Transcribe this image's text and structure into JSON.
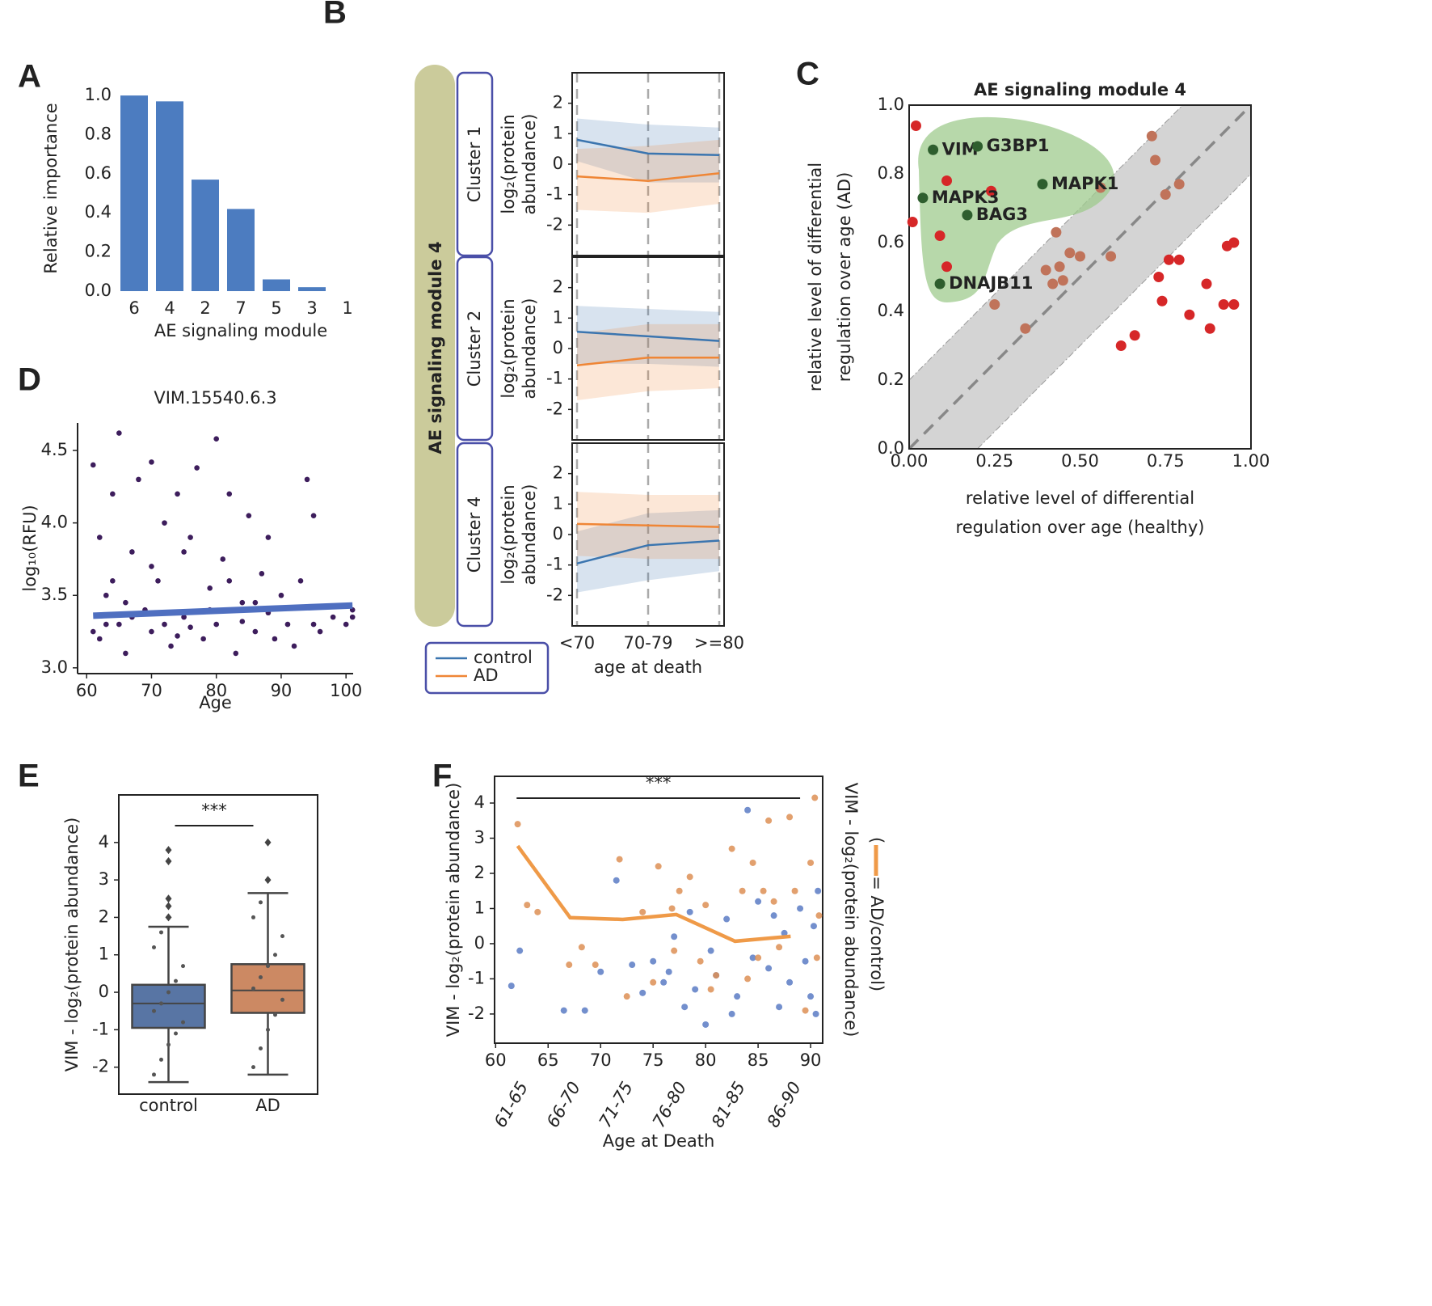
{
  "chart_data": [
    {
      "type": "bar",
      "panel": "A",
      "categories": [
        "6",
        "4",
        "2",
        "7",
        "5",
        "3",
        "1"
      ],
      "values": [
        1.0,
        0.97,
        0.57,
        0.42,
        0.06,
        0.02,
        0
      ],
      "color": "#4c7cc0",
      "ylim": [
        0,
        1.05
      ],
      "yticks": [
        {
          "value": 0,
          "label": "0.0"
        },
        0.2,
        0.4,
        0.6,
        0.8,
        {
          "value": 1,
          "label": "1.0"
        }
      ],
      "xlabel": "AE signaling module",
      "ylabel": "Relative importance"
    },
    {
      "type": "line",
      "panel": "B",
      "title": "AE signaling module 4",
      "categories": [
        "<70",
        "70-79",
        ">=80"
      ],
      "xlabel": "age at death",
      "ylabel": [
        "log₂(protein",
        "abundance)"
      ],
      "ylim": [
        -3,
        3
      ],
      "yticks": [
        -2,
        -1,
        0,
        1,
        2
      ],
      "series": [
        {
          "name": "control",
          "color": "#3b75af"
        },
        {
          "name": "AD",
          "color": "#ef8636"
        }
      ],
      "subplots": [
        {
          "title": "Cluster 1",
          "series": [
            {
              "values": [
                0.8,
                0.35,
                0.3
              ],
              "lower": [
                0.1,
                -0.6,
                -0.6
              ],
              "upper": [
                1.5,
                1.3,
                1.2
              ]
            },
            {
              "values": [
                -0.4,
                -0.55,
                -0.3
              ],
              "lower": [
                -1.5,
                -1.6,
                -1.3
              ],
              "upper": [
                0.5,
                0.6,
                0.8
              ]
            }
          ]
        },
        {
          "title": "Cluster 2",
          "series": [
            {
              "values": [
                0.55,
                0.4,
                0.25
              ],
              "lower": [
                -0.5,
                -0.5,
                -0.6
              ],
              "upper": [
                1.4,
                1.3,
                1.2
              ]
            },
            {
              "values": [
                -0.55,
                -0.3,
                -0.3
              ],
              "lower": [
                -1.7,
                -1.4,
                -1.3
              ],
              "upper": [
                0.5,
                0.8,
                0.8
              ]
            }
          ]
        },
        {
          "title": "Cluster 4",
          "series": [
            {
              "values": [
                -0.95,
                -0.35,
                -0.2
              ],
              "lower": [
                -1.9,
                -1.5,
                -1.2
              ],
              "upper": [
                0.1,
                0.7,
                0.8
              ]
            },
            {
              "values": [
                0.35,
                0.3,
                0.25
              ],
              "lower": [
                -0.7,
                -0.8,
                -0.8
              ],
              "upper": [
                1.4,
                1.3,
                1.3
              ]
            }
          ]
        }
      ]
    },
    {
      "type": "scatter",
      "panel": "C",
      "title": "AE signaling module 4",
      "xlabel": [
        "relative level of differential",
        "regulation over age (healthy)"
      ],
      "ylabel": [
        "relative level of differential",
        "regulation over age (AD)"
      ],
      "xlim": [
        0,
        1
      ],
      "ylim": [
        0,
        1
      ],
      "xticks": [
        {
          "value": 0,
          "label": "0.00"
        },
        0.25,
        {
          "value": 0.5,
          "label": "0.50"
        },
        0.75,
        {
          "value": 1,
          "label": "1.00"
        }
      ],
      "yticks": [
        {
          "value": 0,
          "label": "0.0"
        },
        0.2,
        0.4,
        0.6,
        0.8,
        {
          "value": 1,
          "label": "1.0"
        }
      ],
      "diagonal_band": 0.2,
      "series": [
        {
          "color": "#d62728",
          "x": [
            0.02,
            0.01,
            0.11,
            0.09,
            0.11,
            0.24,
            0.73,
            0.74,
            0.76,
            0.79,
            0.87,
            0.92,
            0.95,
            0.93,
            0.95,
            0.88,
            0.82,
            0.66,
            0.62
          ],
          "values": [
            0.94,
            0.66,
            0.78,
            0.62,
            0.53,
            0.75,
            0.5,
            0.43,
            0.55,
            0.55,
            0.48,
            0.42,
            0.42,
            0.59,
            0.6,
            0.35,
            0.39,
            0.33,
            0.3
          ]
        },
        {
          "color": "#c0735a",
          "x": [
            0.71,
            0.72,
            0.79,
            0.75,
            0.56,
            0.43,
            0.4,
            0.44,
            0.47,
            0.5,
            0.59,
            0.42,
            0.45,
            0.25,
            0.34
          ],
          "values": [
            0.91,
            0.84,
            0.77,
            0.74,
            0.76,
            0.63,
            0.52,
            0.53,
            0.57,
            0.56,
            0.56,
            0.48,
            0.49,
            0.42,
            0.35
          ]
        },
        {
          "color": "#2e5e2e",
          "x": [
            0.07,
            0.2,
            0.39,
            0.04,
            0.17,
            0.09
          ],
          "values": [
            0.87,
            0.88,
            0.77,
            0.73,
            0.68,
            0.48
          ],
          "labels": [
            "VIM",
            "G3BP1",
            "MAPK1",
            "MAPK3",
            "BAG3",
            "DNAJB11"
          ]
        }
      ]
    },
    {
      "type": "scatter",
      "panel": "D",
      "title": "VIM.15540.6.3",
      "xlabel": "Age",
      "ylabel": "log₁₀(RFU)",
      "xlim": [
        58.6,
        101.1
      ],
      "ylim": [
        2.96,
        4.69
      ],
      "xticks": [
        60,
        70,
        80,
        90,
        100
      ],
      "yticks": [
        {
          "value": 3,
          "label": "3.0"
        },
        3.5,
        {
          "value": 4,
          "label": "4.0"
        },
        4.5
      ],
      "series": [
        {
          "color": "#3d1d5c",
          "x": [
            61,
            62,
            62,
            63,
            64,
            65,
            65,
            66,
            67,
            68,
            69,
            70,
            70,
            71,
            72,
            73,
            74,
            75,
            76,
            77,
            78,
            79,
            80,
            80,
            81,
            82,
            83,
            84,
            85,
            86,
            87,
            88,
            89,
            90,
            91,
            92,
            93,
            94,
            95,
            95,
            96,
            98,
            100,
            101,
            101,
            63,
            67,
            72,
            76,
            84,
            88,
            61,
            66,
            74,
            79,
            86,
            70,
            75,
            82,
            64
          ],
          "values": [
            4.4,
            3.2,
            3.9,
            3.5,
            4.2,
            4.62,
            3.3,
            3.1,
            3.8,
            4.3,
            3.4,
            4.42,
            3.25,
            3.6,
            4.0,
            3.15,
            4.2,
            3.35,
            3.9,
            4.38,
            3.2,
            3.55,
            4.58,
            3.3,
            3.75,
            4.2,
            3.1,
            3.45,
            4.05,
            3.25,
            3.65,
            3.9,
            3.2,
            3.5,
            3.3,
            3.15,
            3.6,
            4.3,
            4.05,
            3.3,
            3.25,
            3.35,
            3.3,
            3.35,
            3.4,
            3.3,
            3.35,
            3.3,
            3.28,
            3.32,
            3.38,
            3.25,
            3.45,
            3.22,
            3.4,
            3.45,
            3.7,
            3.8,
            3.6,
            3.6
          ]
        }
      ],
      "fit": {
        "color": "#4f6fc0",
        "x": [
          61,
          101
        ],
        "values": [
          3.36,
          3.43
        ]
      }
    },
    {
      "type": "box",
      "panel": "E",
      "categories": [
        "control",
        "AD"
      ],
      "ylabel": "VIM - log₂(protein abundance)",
      "ylim": [
        -2.72,
        5.27
      ],
      "yticks": [
        -2,
        -1,
        0,
        1,
        2,
        3,
        4
      ],
      "boxes": [
        {
          "color": "#5875a4",
          "whisker_low": -2.4,
          "q1": -0.95,
          "median": -0.3,
          "q3": 0.2,
          "whisker_high": 1.75,
          "outliers": [
            2.0,
            2.3,
            2.5,
            3.5,
            3.8
          ],
          "points": [
            -2.2,
            -1.8,
            -1.4,
            -1.1,
            -0.8,
            -0.5,
            -0.3,
            0,
            0.3,
            0.7,
            1.2,
            1.6
          ]
        },
        {
          "color": "#cc8963",
          "whisker_low": -2.2,
          "q1": -0.55,
          "median": 0.05,
          "q3": 0.75,
          "whisker_high": 2.65,
          "outliers": [
            3.0,
            4.0
          ],
          "points": [
            -2.0,
            -1.5,
            -1.0,
            -0.6,
            -0.2,
            0.1,
            0.4,
            0.7,
            1.0,
            1.5,
            2.0,
            2.4
          ]
        }
      ],
      "annotation": {
        "text": "***",
        "y": 4.45
      }
    },
    {
      "type": "scatter",
      "panel": "F",
      "xlabel": "Age at Death",
      "ylabel": "VIM - log₂(protein abundance)",
      "y2label": "VIM - log₂(protein abundance)",
      "line_name": "(      = AD/control)",
      "xlim": [
        59.9,
        91.15
      ],
      "ylim": [
        -2.83,
        4.76
      ],
      "xticks": [
        60,
        65,
        70,
        75,
        80,
        85,
        90
      ],
      "yticks": [
        -2,
        -1,
        0,
        1,
        2,
        3,
        4
      ],
      "series": [
        {
          "color": "#5a7bc4",
          "x": [
            61.5,
            62.3,
            66.5,
            68.5,
            70,
            71.5,
            73,
            75,
            76,
            77,
            78,
            79,
            80,
            80.5,
            81,
            82,
            83,
            84,
            84.5,
            85,
            86,
            87,
            87.5,
            88,
            89,
            89.5,
            90,
            90.3,
            90.5,
            90.7,
            74,
            78.5,
            82.5,
            86.5,
            76.5
          ],
          "values": [
            -1.2,
            -0.2,
            -1.9,
            -1.9,
            -0.8,
            1.8,
            -0.6,
            -0.5,
            -1.1,
            0.2,
            -1.8,
            -1.3,
            -2.3,
            -0.2,
            -0.9,
            0.7,
            -1.5,
            3.8,
            -0.4,
            1.2,
            -0.7,
            -1.8,
            0.3,
            -1.1,
            1.0,
            -0.5,
            -1.5,
            0.5,
            -2.0,
            1.5,
            -1.4,
            0.9,
            -2.0,
            0.8,
            -0.8
          ]
        },
        {
          "color": "#dd8f55",
          "x": [
            62.1,
            63,
            64,
            67,
            68.2,
            69.5,
            71.8,
            74,
            75.5,
            76.8,
            77.5,
            78.5,
            79.5,
            80,
            81,
            82.5,
            83.5,
            84.5,
            85.5,
            86,
            86.5,
            87,
            88,
            88.5,
            89.5,
            90,
            90.4,
            90.6,
            90.8,
            75,
            80.5,
            84,
            85,
            72.5,
            77
          ],
          "values": [
            3.4,
            1.1,
            0.9,
            -0.6,
            -0.1,
            -0.6,
            2.4,
            0.9,
            2.2,
            1.0,
            1.5,
            1.9,
            -0.5,
            1.1,
            -0.9,
            2.7,
            1.5,
            2.3,
            1.5,
            3.5,
            1.2,
            -0.1,
            3.6,
            1.5,
            -1.9,
            2.3,
            4.15,
            -0.4,
            0.8,
            -1.1,
            -1.3,
            -1.0,
            -0.4,
            -1.5,
            -0.2
          ]
        }
      ],
      "fit": {
        "color": "#ef9a48",
        "x": [
          62.1,
          67.1,
          72.1,
          77.2,
          82.8,
          88.1
        ],
        "values": [
          2.78,
          0.74,
          0.69,
          0.83,
          0.07,
          0.21
        ],
        "categories": [
          "61-65",
          "66-70",
          "71-75",
          "76-80",
          "81-85",
          "86-90"
        ]
      },
      "annotation": {
        "text": "***",
        "x": [
          62,
          89
        ],
        "y": 4.14
      }
    }
  ]
}
